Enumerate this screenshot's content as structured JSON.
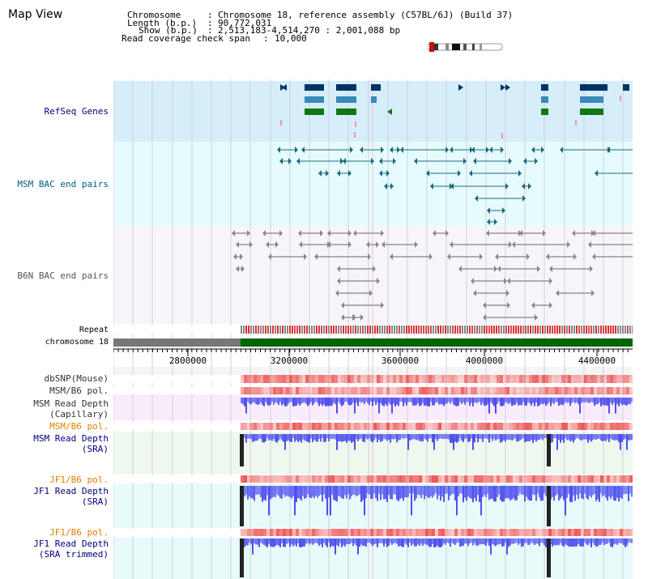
{
  "app": {
    "title": "Map View"
  },
  "header": {
    "chromosome_key": "Chromosome",
    "chromosome_val": "Chromosome 18, reference assembly (C57BL/6J) (Build 37)",
    "length_key": "Length (b.p.)",
    "length_val": "90,772,031",
    "show_key": "Show (b.p.)",
    "show_val": "2,513,183-4,514,270 : 2,001,088 bp",
    "coverage_key": "Read coverage check span",
    "coverage_val": "10,000"
  },
  "tracks": [
    {
      "label": "RefSeq Genes",
      "color": "#000080"
    },
    {
      "label": "MSM BAC end pairs",
      "color": "#006080"
    },
    {
      "label": "B6N BAC end pairs",
      "color": "#555555"
    },
    {
      "label": "Repeat",
      "color": "#000000"
    },
    {
      "label": "chromosome 18",
      "color": "#000000"
    },
    {
      "label": "dbSNP(Mouse)",
      "color": "#333333"
    },
    {
      "label": "MSM/B6 pol.",
      "color": "#333333"
    },
    {
      "label": "MSM Read Depth",
      "label2": "(Capillary)",
      "color": "#333333"
    },
    {
      "label": "MSM/B6 pol.",
      "color": "#e08000"
    },
    {
      "label": "MSM Read Depth",
      "label2": "(SRA)",
      "color": "#000080"
    },
    {
      "label": "JF1/B6 pol.",
      "color": "#e08000"
    },
    {
      "label": "JF1 Read Depth",
      "label2": "(SRA)",
      "color": "#000080"
    },
    {
      "label": "JF1/B6 pol.",
      "color": "#e08000"
    },
    {
      "label": "JF1 Read Depth",
      "label2": "(SRA trimmed)",
      "color": "#000080"
    }
  ],
  "ruler": {
    "ticks": [
      "2800000",
      "3200000",
      "3600000",
      "4000000",
      "4400000"
    ]
  },
  "colors": {
    "refseq_dark": "#003366",
    "refseq_mid": "#3a8ab8",
    "refseq_green": "#117711",
    "msm_bac": "#1a6a80",
    "b6n_bac": "#666666",
    "depth_blue": "#3a3aee",
    "pol_red": "#e83030",
    "chrom_green": "#006600"
  }
}
